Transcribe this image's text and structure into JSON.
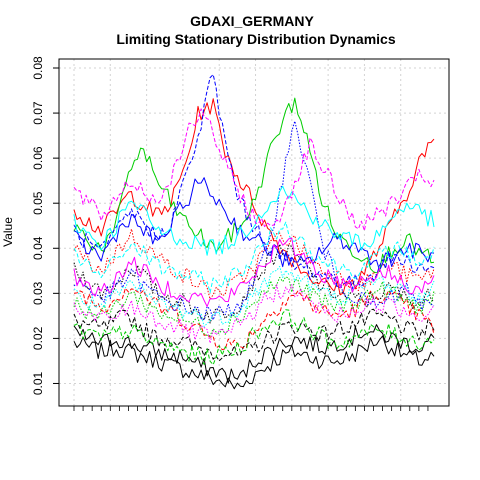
{
  "chart_data": {
    "type": "line",
    "title": "GDAXI_GERMANY",
    "subtitle": "Limiting Stationary Distribution Dynamics",
    "xlabel": "",
    "ylabel": "Value",
    "ylim": [
      0.005,
      0.082
    ],
    "yticks": [
      0.01,
      0.02,
      0.03,
      0.04,
      0.05,
      0.06,
      0.07,
      0.08
    ],
    "ytick_labels": [
      "0.01",
      "0.02",
      "0.03",
      "0.04",
      "0.05",
      "0.06",
      "0.07",
      "0.08"
    ],
    "x_count": 120,
    "xtick_every": 3,
    "grid": true,
    "colors": [
      "#000000",
      "#ff0000",
      "#00cd00",
      "#0000ff",
      "#00ffff",
      "#ff00ff"
    ],
    "series": [
      {
        "color": "#000000",
        "dash": "solid",
        "values": [
          0.019,
          0.018,
          0.017,
          0.018,
          0.017,
          0.016,
          0.015,
          0.014,
          0.013,
          0.012,
          0.011,
          0.01,
          0.009,
          0.012,
          0.014,
          0.016,
          0.017,
          0.016,
          0.015,
          0.015,
          0.016,
          0.018,
          0.02,
          0.018,
          0.016,
          0.015,
          0.016
        ]
      },
      {
        "color": "#000000",
        "dash": "solid",
        "values": [
          0.021,
          0.02,
          0.019,
          0.02,
          0.019,
          0.018,
          0.017,
          0.016,
          0.016,
          0.014,
          0.013,
          0.012,
          0.011,
          0.015,
          0.017,
          0.019,
          0.02,
          0.019,
          0.018,
          0.019,
          0.02,
          0.022,
          0.021,
          0.02,
          0.019,
          0.018,
          0.02
        ]
      },
      {
        "color": "#000000",
        "dash": "dashed",
        "values": [
          0.024,
          0.023,
          0.022,
          0.024,
          0.025,
          0.022,
          0.02,
          0.02,
          0.019,
          0.018,
          0.017,
          0.017,
          0.016,
          0.018,
          0.02,
          0.022,
          0.023,
          0.022,
          0.021,
          0.022,
          0.023,
          0.024,
          0.025,
          0.024,
          0.022,
          0.021,
          0.023
        ]
      },
      {
        "color": "#000000",
        "dash": "dotted",
        "values": [
          0.035,
          0.033,
          0.03,
          0.032,
          0.036,
          0.034,
          0.03,
          0.029,
          0.028,
          0.026,
          0.025,
          0.026,
          0.028,
          0.033,
          0.037,
          0.04,
          0.038,
          0.035,
          0.031,
          0.03,
          0.029,
          0.028,
          0.03,
          0.031,
          0.029,
          0.028,
          0.03
        ]
      },
      {
        "color": "#ff0000",
        "dash": "solid",
        "values": [
          0.049,
          0.046,
          0.044,
          0.048,
          0.052,
          0.05,
          0.047,
          0.05,
          0.058,
          0.07,
          0.072,
          0.061,
          0.055,
          0.05,
          0.044,
          0.04,
          0.037,
          0.034,
          0.032,
          0.031,
          0.032,
          0.035,
          0.04,
          0.046,
          0.052,
          0.06,
          0.063
        ]
      },
      {
        "color": "#ff0000",
        "dash": "dashed",
        "values": [
          0.031,
          0.029,
          0.027,
          0.029,
          0.032,
          0.03,
          0.027,
          0.026,
          0.024,
          0.022,
          0.02,
          0.019,
          0.018,
          0.022,
          0.025,
          0.028,
          0.03,
          0.028,
          0.026,
          0.025,
          0.026,
          0.028,
          0.03,
          0.029,
          0.027,
          0.025,
          0.022
        ]
      },
      {
        "color": "#ff0000",
        "dash": "dotted",
        "values": [
          0.04,
          0.037,
          0.035,
          0.039,
          0.043,
          0.041,
          0.038,
          0.036,
          0.034,
          0.032,
          0.03,
          0.031,
          0.033,
          0.036,
          0.04,
          0.043,
          0.041,
          0.038,
          0.035,
          0.034,
          0.033,
          0.032,
          0.035,
          0.036,
          0.034,
          0.033,
          0.035
        ]
      },
      {
        "color": "#00cd00",
        "dash": "solid",
        "values": [
          0.045,
          0.042,
          0.04,
          0.044,
          0.058,
          0.062,
          0.055,
          0.05,
          0.046,
          0.043,
          0.04,
          0.042,
          0.045,
          0.05,
          0.06,
          0.068,
          0.073,
          0.062,
          0.05,
          0.043,
          0.04,
          0.038,
          0.036,
          0.04,
          0.042,
          0.039,
          0.037
        ]
      },
      {
        "color": "#00cd00",
        "dash": "dashed",
        "values": [
          0.022,
          0.021,
          0.02,
          0.021,
          0.022,
          0.02,
          0.019,
          0.018,
          0.017,
          0.016,
          0.016,
          0.017,
          0.018,
          0.021,
          0.023,
          0.025,
          0.024,
          0.022,
          0.02,
          0.019,
          0.02,
          0.021,
          0.022,
          0.021,
          0.02,
          0.019,
          0.02
        ]
      },
      {
        "color": "#00cd00",
        "dash": "dotted",
        "values": [
          0.028,
          0.026,
          0.025,
          0.027,
          0.03,
          0.028,
          0.026,
          0.025,
          0.024,
          0.023,
          0.022,
          0.023,
          0.025,
          0.028,
          0.031,
          0.033,
          0.032,
          0.03,
          0.028,
          0.027,
          0.028,
          0.029,
          0.031,
          0.03,
          0.028,
          0.027,
          0.029
        ]
      },
      {
        "color": "#0000ff",
        "dash": "solid",
        "values": [
          0.042,
          0.04,
          0.038,
          0.043,
          0.047,
          0.044,
          0.041,
          0.045,
          0.05,
          0.055,
          0.052,
          0.048,
          0.044,
          0.042,
          0.04,
          0.038,
          0.036,
          0.037,
          0.04,
          0.042,
          0.041,
          0.039,
          0.037,
          0.038,
          0.04,
          0.039,
          0.038
        ]
      },
      {
        "color": "#0000ff",
        "dash": "dashed",
        "values": [
          0.044,
          0.041,
          0.039,
          0.043,
          0.048,
          0.046,
          0.042,
          0.046,
          0.055,
          0.065,
          0.079,
          0.062,
          0.05,
          0.045,
          0.041,
          0.038,
          0.036,
          0.035,
          0.034,
          0.033,
          0.032,
          0.033,
          0.036,
          0.038,
          0.037,
          0.036,
          0.035
        ]
      },
      {
        "color": "#0000ff",
        "dash": "dotted",
        "values": [
          0.033,
          0.031,
          0.029,
          0.031,
          0.034,
          0.032,
          0.029,
          0.028,
          0.027,
          0.026,
          0.025,
          0.026,
          0.028,
          0.032,
          0.04,
          0.055,
          0.068,
          0.055,
          0.04,
          0.033,
          0.03,
          0.028,
          0.027,
          0.029,
          0.031,
          0.028,
          0.026
        ]
      },
      {
        "color": "#00ffff",
        "dash": "solid",
        "values": [
          0.046,
          0.043,
          0.041,
          0.045,
          0.05,
          0.048,
          0.044,
          0.043,
          0.042,
          0.041,
          0.04,
          0.041,
          0.043,
          0.046,
          0.05,
          0.053,
          0.051,
          0.048,
          0.045,
          0.043,
          0.042,
          0.041,
          0.043,
          0.047,
          0.05,
          0.048,
          0.046
        ]
      },
      {
        "color": "#00ffff",
        "dash": "dashed",
        "values": [
          0.038,
          0.036,
          0.034,
          0.037,
          0.041,
          0.039,
          0.036,
          0.035,
          0.034,
          0.033,
          0.032,
          0.033,
          0.035,
          0.038,
          0.042,
          0.045,
          0.043,
          0.04,
          0.037,
          0.036,
          0.035,
          0.036,
          0.038,
          0.04,
          0.039,
          0.037,
          0.039
        ]
      },
      {
        "color": "#00ffff",
        "dash": "dotted",
        "values": [
          0.03,
          0.028,
          0.027,
          0.029,
          0.032,
          0.03,
          0.028,
          0.027,
          0.026,
          0.025,
          0.024,
          0.025,
          0.027,
          0.03,
          0.033,
          0.035,
          0.034,
          0.032,
          0.03,
          0.029,
          0.03,
          0.031,
          0.033,
          0.032,
          0.03,
          0.029,
          0.031
        ]
      },
      {
        "color": "#ff00ff",
        "dash": "solid",
        "values": [
          0.034,
          0.032,
          0.03,
          0.033,
          0.037,
          0.035,
          0.032,
          0.031,
          0.03,
          0.029,
          0.028,
          0.029,
          0.031,
          0.034,
          0.038,
          0.041,
          0.04,
          0.037,
          0.034,
          0.033,
          0.032,
          0.033,
          0.035,
          0.034,
          0.032,
          0.031,
          0.033
        ]
      },
      {
        "color": "#ff00ff",
        "dash": "dashed",
        "values": [
          0.053,
          0.05,
          0.047,
          0.051,
          0.055,
          0.053,
          0.05,
          0.056,
          0.064,
          0.07,
          0.066,
          0.058,
          0.052,
          0.047,
          0.044,
          0.048,
          0.055,
          0.063,
          0.058,
          0.052,
          0.047,
          0.045,
          0.048,
          0.05,
          0.053,
          0.056,
          0.055
        ]
      },
      {
        "color": "#ff00ff",
        "dash": "dotted",
        "values": [
          0.026,
          0.025,
          0.024,
          0.025,
          0.027,
          0.026,
          0.024,
          0.023,
          0.022,
          0.021,
          0.02,
          0.021,
          0.023,
          0.026,
          0.029,
          0.031,
          0.03,
          0.028,
          0.026,
          0.025,
          0.026,
          0.027,
          0.028,
          0.027,
          0.026,
          0.025,
          0.027
        ]
      }
    ]
  }
}
